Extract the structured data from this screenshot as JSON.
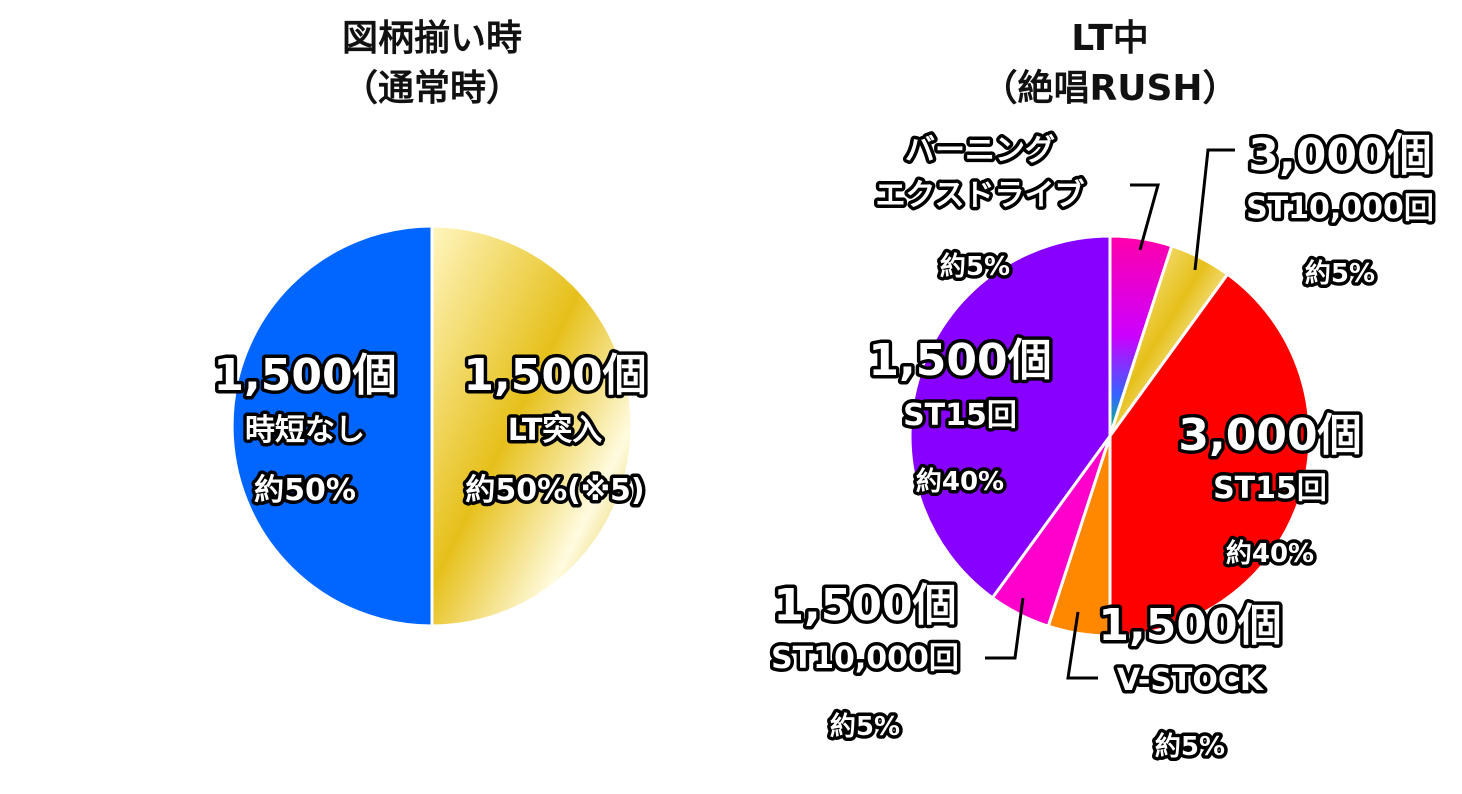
{
  "chart_data": [
    {
      "type": "pie",
      "title_line1": "図柄揃い時",
      "title_line2": "（通常時）",
      "slices": [
        {
          "name": "時短なし",
          "award": "1,500個",
          "detail": "時短なし",
          "percent_label": "約50%",
          "value": 50,
          "color": "#0066ff"
        },
        {
          "name": "LT突入",
          "award": "1,500個",
          "detail": "LT突入",
          "percent_label": "約50%(※5)",
          "value": 50,
          "color": "#e6c01a"
        }
      ]
    },
    {
      "type": "pie",
      "title_line1": "LT中",
      "title_line2": "（絶唱RUSH）",
      "slices": [
        {
          "name": "バーニングエクスドライブ",
          "award": "バーニング",
          "detail": "エクスドライブ",
          "percent_label": "約5%",
          "value": 5,
          "color": "#ff00cc"
        },
        {
          "name": "3,000個 ST10,000回",
          "award": "3,000個",
          "detail": "ST10,000回",
          "percent_label": "約5%",
          "value": 5,
          "color": "#f2d23a"
        },
        {
          "name": "3,000個 ST15回",
          "award": "3,000個",
          "detail": "ST15回",
          "percent_label": "約40%",
          "value": 40,
          "color": "#ff0000"
        },
        {
          "name": "1,500個 V-STOCK",
          "award": "1,500個",
          "detail": "V-STOCK",
          "percent_label": "約5%",
          "value": 5,
          "color": "#ff8800"
        },
        {
          "name": "1,500個 ST10,000回",
          "award": "1,500個",
          "detail": "ST10,000回",
          "percent_label": "約5%",
          "value": 5,
          "color": "#ff00cc"
        },
        {
          "name": "1,500個 ST15回",
          "award": "1,500個",
          "detail": "ST15回",
          "percent_label": "約40%",
          "value": 40,
          "color": "#8800ff"
        }
      ]
    }
  ]
}
